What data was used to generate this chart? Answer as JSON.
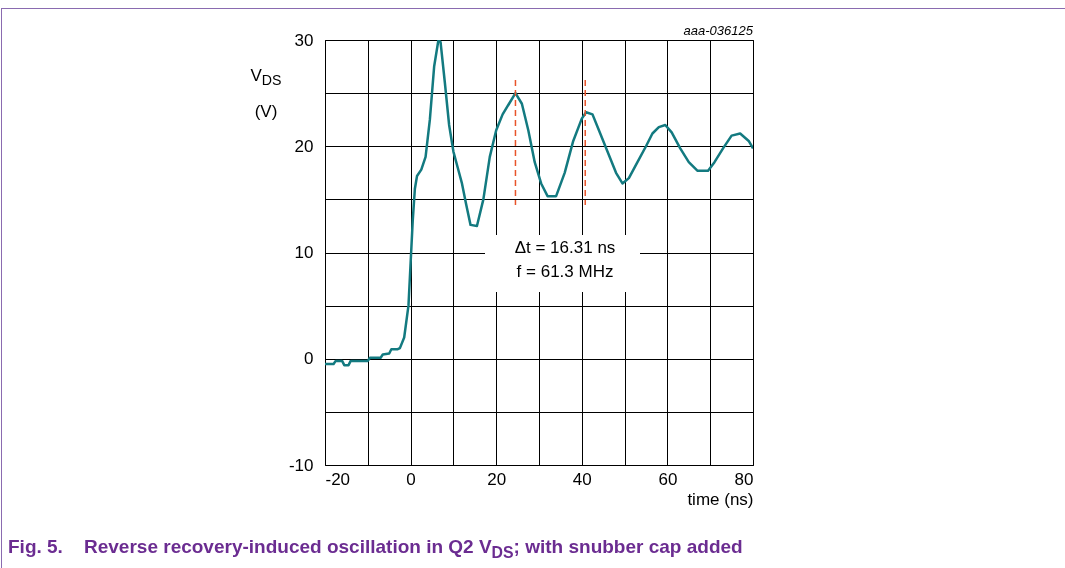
{
  "chart_data": {
    "type": "line",
    "title": "Fig. 5.    Reverse recovery-induced oscillation in Q2 V$_{DS}$; with snubber cap added",
    "xlabel": "time (ns)",
    "ylabel": "V$_{DS}$\n(V)",
    "x": [
      -20,
      -18,
      -17.5,
      -16,
      -15.5,
      -14.5,
      -14,
      -10,
      -9.5,
      -7,
      -6.5,
      -5,
      -4.5,
      -3,
      -2.5,
      -1.5,
      -0.5,
      0,
      0.5,
      1,
      1.5,
      2.5,
      3.5,
      4.5,
      5.5,
      6.5,
      7,
      8,
      9,
      10,
      11,
      12,
      13,
      14,
      15.5,
      17,
      18.5,
      20,
      21.5,
      23,
      24.5,
      26,
      27.5,
      29,
      30.5,
      32,
      34,
      36,
      38,
      40,
      41,
      42.5,
      44,
      46,
      48,
      49.5,
      51,
      53,
      55,
      56.5,
      58,
      59.5,
      61,
      63,
      65,
      67,
      69.5,
      71,
      73,
      75,
      77,
      79,
      80
    ],
    "series": [
      {
        "color": "#137a80",
        "values": [
          -0.5,
          -0.5,
          -0.2,
          -0.2,
          -0.6,
          -0.6,
          -0.2,
          -0.2,
          0.1,
          0.1,
          0.4,
          0.5,
          0.9,
          0.9,
          1,
          2,
          5,
          9,
          13,
          16,
          17.2,
          17.8,
          19,
          22.5,
          27.5,
          30,
          29.8,
          26,
          22,
          19.5,
          18,
          16.5,
          14.5,
          12.6,
          12.5,
          15,
          19,
          21.5,
          23,
          24,
          25,
          24,
          21.5,
          18.5,
          16.5,
          15.3,
          15.3,
          17.5,
          20.5,
          22.6,
          23.2,
          23,
          21.5,
          19.5,
          17.5,
          16.5,
          17,
          18.5,
          20,
          21.2,
          21.8,
          22,
          21.3,
          19.8,
          18.5,
          17.7,
          17.7,
          18.5,
          19.8,
          21,
          21.2,
          20.5,
          19.8
        ]
      }
    ],
    "xlim": [
      -20,
      80
    ],
    "ylim": [
      -10,
      30
    ],
    "xticks": [
      -20,
      {
        "value": -10,
        "label": null
      },
      0,
      {
        "value": 10,
        "label": null
      },
      20,
      {
        "value": 30,
        "label": null
      },
      40,
      {
        "value": 50,
        "label": null
      },
      60,
      {
        "value": 70,
        "label": null
      },
      80
    ],
    "yticks": [
      -10,
      {
        "value": -5,
        "label": null
      },
      0,
      {
        "value": 5,
        "label": null
      },
      10,
      {
        "value": 15,
        "label": null
      },
      20,
      {
        "value": 25,
        "label": null
      },
      30
    ],
    "grid": true,
    "ref_lines": [
      {
        "axis": "x",
        "value": 24.5,
        "color": "#e8542a",
        "line_style": "dashed"
      },
      {
        "axis": "x",
        "value": 40.8,
        "color": "#e8542a",
        "line_style": "dashed"
      }
    ],
    "annotations": [
      "Δt = 16.31 ns\nf = 61.3 MHz",
      "aaa-036125"
    ]
  }
}
